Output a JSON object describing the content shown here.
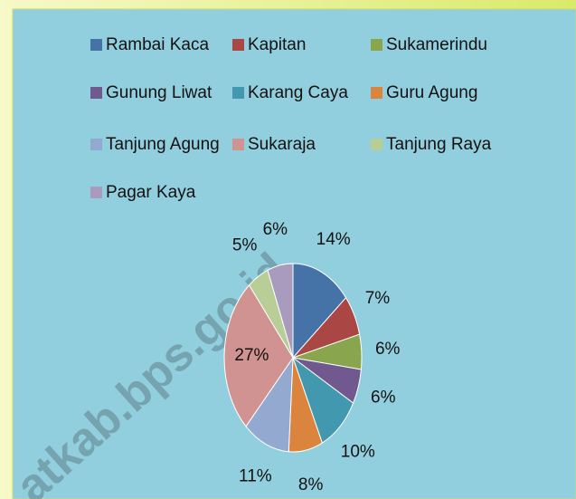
{
  "chart_data": {
    "type": "pie",
    "categories": [
      "Rambai Kaca",
      "Kapitan",
      "Sukamerindu",
      "Gunung Liwat",
      "Karang Caya",
      "Guru Agung",
      "Tanjung Agung",
      "Sukaraja",
      "Tanjung Raya",
      "Pagar Kaya"
    ],
    "values": [
      14,
      7,
      6,
      6,
      10,
      8,
      11,
      27,
      5,
      6
    ],
    "value_labels": [
      "14%",
      "7%",
      "6%",
      "6%",
      "10%",
      "8%",
      "11%",
      "27%",
      "5%",
      "6%"
    ],
    "colors": [
      "#4572A7",
      "#AA4643",
      "#89A54E",
      "#71588F",
      "#4198AF",
      "#DB843D",
      "#93A9CF",
      "#D19392",
      "#B9CD96",
      "#A99BBD"
    ],
    "legend": "top",
    "watermark": "atkab.bps.go.id"
  }
}
